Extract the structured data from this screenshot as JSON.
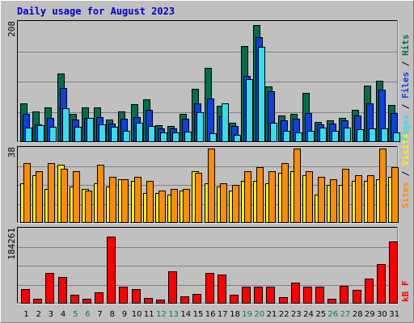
{
  "title": "Daily usage for August 2023",
  "colors": {
    "hits": "#006f4b",
    "files": "#0f3fe0",
    "pages": "#33ddf0",
    "visits": "#fff000",
    "sites": "#ff8c00",
    "kb": "#ff0000",
    "weekend_label": "#008060",
    "weekday_label": "#000000",
    "legend_sep": "#000000"
  },
  "chart_data": [
    {
      "type": "bar",
      "panel": "top",
      "ymax_label": "208",
      "ylim": [
        0,
        208
      ],
      "legend": [
        "Pages",
        "Files",
        "Hits"
      ],
      "categories": [
        "1",
        "2",
        "3",
        "4",
        "5",
        "6",
        "7",
        "8",
        "9",
        "10",
        "11",
        "12",
        "13",
        "14",
        "15",
        "16",
        "17",
        "18",
        "19",
        "20",
        "21",
        "22",
        "23",
        "24",
        "25",
        "26",
        "27",
        "28",
        "29",
        "30",
        "31"
      ],
      "series": [
        {
          "name": "Hits",
          "values": [
            66,
            53,
            60,
            118,
            48,
            59,
            60,
            39,
            52,
            65,
            73,
            29,
            28,
            49,
            92,
            127,
            62,
            33,
            165,
            201,
            95,
            46,
            48,
            85,
            34,
            38,
            42,
            56,
            97,
            106,
            64
          ]
        },
        {
          "name": "Files",
          "values": [
            49,
            30,
            42,
            93,
            39,
            42,
            43,
            32,
            40,
            43,
            56,
            23,
            23,
            40,
            67,
            75,
            45,
            28,
            114,
            180,
            88,
            37,
            40,
            50,
            31,
            32,
            38,
            46,
            67,
            90,
            50
          ]
        },
        {
          "name": "Pages",
          "values": [
            25,
            29,
            27,
            58,
            27,
            42,
            31,
            27,
            19,
            33,
            28,
            17,
            16,
            18,
            51,
            15,
            67,
            13,
            108,
            163,
            33,
            20,
            17,
            19,
            25,
            19,
            25,
            22,
            24,
            24,
            17
          ]
        }
      ]
    },
    {
      "type": "bar",
      "panel": "middle",
      "ymax_label": "38",
      "ylim": [
        0,
        38
      ],
      "legend": [
        "Sites",
        "Visits"
      ],
      "categories": [
        "1",
        "2",
        "3",
        "4",
        "5",
        "6",
        "7",
        "8",
        "9",
        "10",
        "11",
        "12",
        "13",
        "14",
        "15",
        "16",
        "17",
        "18",
        "19",
        "20",
        "21",
        "22",
        "23",
        "24",
        "25",
        "26",
        "27",
        "28",
        "29",
        "30",
        "31"
      ],
      "series": [
        {
          "name": "Sites",
          "values": [
            30,
            26,
            30,
            27,
            26,
            16,
            29,
            23,
            22,
            23,
            21,
            16,
            17,
            17,
            25,
            37,
            20,
            19,
            26,
            28,
            26,
            30,
            37,
            26,
            23,
            22,
            27,
            24,
            24,
            37,
            28
          ]
        },
        {
          "name": "Visits",
          "values": [
            20,
            24,
            17,
            29,
            18,
            17,
            20,
            18,
            22,
            21,
            15,
            15,
            14,
            16,
            26,
            20,
            18,
            16,
            21,
            21,
            20,
            25,
            26,
            24,
            14,
            19,
            19,
            21,
            21,
            22,
            23
          ]
        }
      ]
    },
    {
      "type": "bar",
      "panel": "bottom",
      "ymax_label": "184261",
      "ylim": [
        0,
        184261
      ],
      "legend": [
        "KB",
        "F"
      ],
      "legend_display": "kB F",
      "categories": [
        "1",
        "2",
        "3",
        "4",
        "5",
        "6",
        "7",
        "8",
        "9",
        "10",
        "11",
        "12",
        "13",
        "14",
        "15",
        "16",
        "17",
        "18",
        "19",
        "20",
        "21",
        "22",
        "23",
        "24",
        "25",
        "26",
        "27",
        "28",
        "29",
        "30",
        "31"
      ],
      "series": [
        {
          "name": "KB",
          "values": [
            35000,
            12000,
            74000,
            65000,
            21000,
            11000,
            28000,
            162000,
            41000,
            36000,
            13000,
            10000,
            79000,
            18000,
            23000,
            74000,
            70000,
            21000,
            41000,
            42000,
            42000,
            16000,
            51000,
            41000,
            42000,
            12000,
            43000,
            33000,
            60000,
            96000,
            150000
          ]
        }
      ]
    }
  ],
  "x_labels": [
    "1",
    "2",
    "3",
    "4",
    "5",
    "6",
    "7",
    "8",
    "9",
    "10",
    "11",
    "12",
    "13",
    "14",
    "15",
    "16",
    "17",
    "18",
    "19",
    "20",
    "21",
    "22",
    "23",
    "24",
    "25",
    "26",
    "27",
    "28",
    "29",
    "30",
    "31"
  ],
  "weekend_days": [
    5,
    6,
    12,
    13,
    19,
    20,
    26,
    27
  ]
}
